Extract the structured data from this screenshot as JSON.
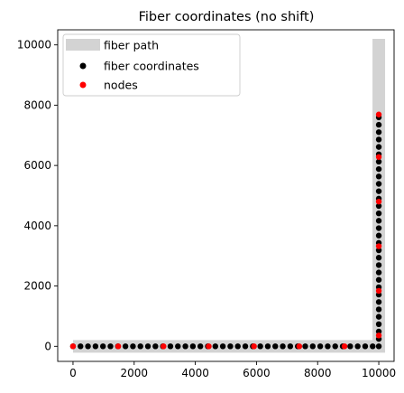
{
  "chart_data": {
    "type": "scatter",
    "title": "Fiber coordinates (no shift)",
    "xlabel": "",
    "ylabel": "",
    "xlim": [
      -500,
      10500
    ],
    "ylim": [
      -500,
      10500
    ],
    "x_ticks": [
      0,
      2000,
      4000,
      6000,
      8000,
      10000
    ],
    "y_ticks": [
      0,
      2000,
      4000,
      6000,
      8000,
      10000
    ],
    "legend_position": "top-left",
    "series": [
      {
        "name": "fiber path",
        "kind": "thick-line",
        "color": "#d3d3d3",
        "x": [
          0,
          10000,
          10000
        ],
        "y": [
          0,
          0,
          10200
        ]
      },
      {
        "name": "fiber coordinates",
        "kind": "points",
        "color": "#000000",
        "x_start": 0,
        "x_end": 9800,
        "x_step": 245,
        "corner": [
          10000,
          0
        ],
        "y_start": 245,
        "y_end": 7690,
        "y_step": 245
      },
      {
        "name": "nodes",
        "kind": "points",
        "color": "#ff0000",
        "x": [
          0,
          1480,
          2960,
          4440,
          5920,
          7400,
          8880,
          10000,
          10000,
          10000,
          10000,
          10000,
          10000
        ],
        "y": [
          0,
          0,
          0,
          0,
          0,
          0,
          0,
          360,
          1840,
          3320,
          4800,
          6280,
          7690
        ]
      }
    ]
  }
}
